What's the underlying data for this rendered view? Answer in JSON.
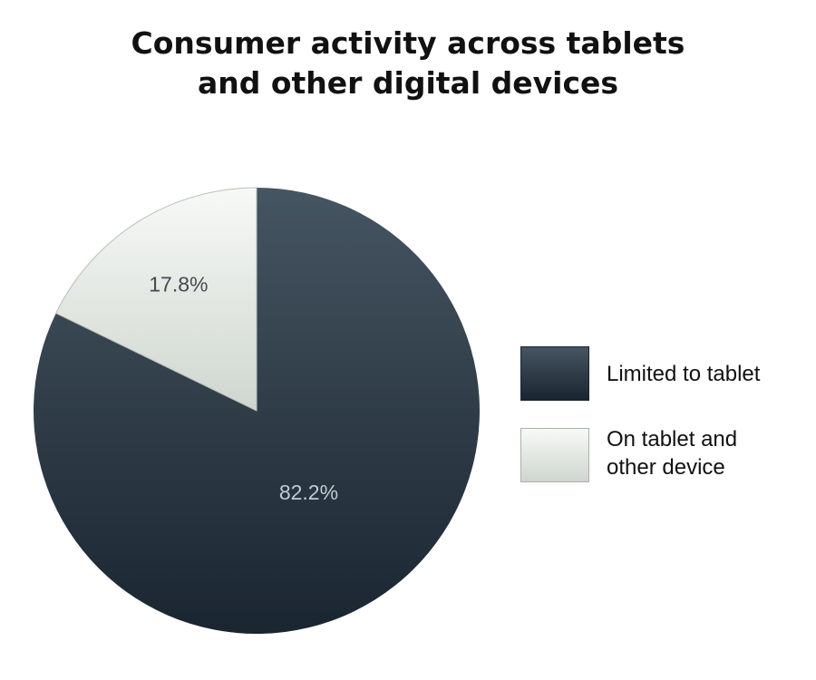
{
  "title": {
    "line1": "Consumer activity across tablets",
    "line2": "and other digital devices"
  },
  "chart_data": {
    "type": "pie",
    "title": "Consumer activity across tablets and other digital devices",
    "slices": [
      {
        "name": "Limited to tablet",
        "value": 82.2,
        "label": "82.2%",
        "color_top": "#455561",
        "color_bottom": "#1a2530",
        "label_color": "#c2cbd1"
      },
      {
        "name": "On tablet and other device",
        "value": 17.8,
        "label": "17.8%",
        "color_top": "#f7f9f6",
        "color_bottom": "#cfd6cf",
        "label_color": "#444b4f"
      }
    ],
    "legend": {
      "position": "right",
      "items": [
        {
          "line1": "Limited to tablet",
          "line2": ""
        },
        {
          "line1": "On tablet and",
          "line2": "other device"
        }
      ]
    }
  }
}
